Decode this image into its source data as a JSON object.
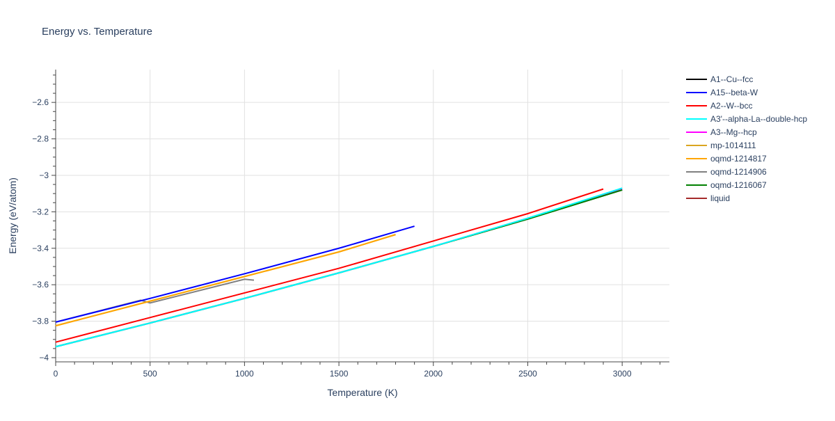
{
  "chart_data": {
    "type": "line",
    "title": "Energy vs. Temperature",
    "xlabel": "Temperature (K)",
    "ylabel": "Energy (eV/atom)",
    "xlim": [
      0,
      3250
    ],
    "ylim": [
      -4.023,
      -2.42
    ],
    "xticks": [
      0,
      500,
      1000,
      1500,
      2000,
      2500,
      3000
    ],
    "yticks": [
      -4,
      -3.8,
      -3.6,
      -3.4,
      -3.2,
      -3,
      -2.8,
      -2.6
    ],
    "ytick_labels": [
      "−4",
      "−3.8",
      "−3.6",
      "−3.4",
      "−3.2",
      "−3",
      "−2.8",
      "−2.6"
    ],
    "grid": true,
    "legend_position": "right",
    "series": [
      {
        "name": "A1--Cu--fcc",
        "color": "#000000",
        "x": [
          0,
          500,
          1000,
          1500,
          2000,
          2500,
          3000
        ],
        "y": [
          -3.94,
          -3.81,
          -3.675,
          -3.535,
          -3.39,
          -3.24,
          -3.08
        ]
      },
      {
        "name": "A15--beta-W",
        "color": "#0000ff",
        "x": [
          0,
          500,
          1000,
          1500,
          1900
        ],
        "y": [
          -3.805,
          -3.675,
          -3.54,
          -3.4,
          -3.279
        ]
      },
      {
        "name": "A2--W--bcc",
        "color": "#ff0000",
        "x": [
          0,
          500,
          1000,
          1500,
          2000,
          2500,
          2900
        ],
        "y": [
          -3.915,
          -3.78,
          -3.645,
          -3.51,
          -3.36,
          -3.21,
          -3.075
        ]
      },
      {
        "name": "A3'--alpha-La--double-hcp",
        "color": "#00ffff",
        "x": [
          0,
          500,
          1000,
          1500,
          2000,
          2500,
          3000
        ],
        "y": [
          -3.94,
          -3.81,
          -3.675,
          -3.535,
          -3.39,
          -3.235,
          -3.07
        ]
      },
      {
        "name": "A3--Mg--hcp",
        "color": "#ff00ff",
        "x": [
          0,
          500,
          1000,
          1500,
          2000,
          2500,
          3000
        ],
        "y": [
          -3.94,
          -3.81,
          -3.675,
          -3.535,
          -3.39,
          -3.235,
          -3.075
        ]
      },
      {
        "name": "mp-1014111",
        "color": "#daa520",
        "x": [
          0,
          500,
          1000,
          1500,
          1800
        ],
        "y": [
          -3.825,
          -3.69,
          -3.555,
          -3.42,
          -3.325
        ]
      },
      {
        "name": "oqmd-1214817",
        "color": "#ffa500",
        "x": [
          0,
          500,
          1000,
          1500,
          1800
        ],
        "y": [
          -3.825,
          -3.69,
          -3.555,
          -3.42,
          -3.325
        ]
      },
      {
        "name": "oqmd-1214906",
        "color": "#808080",
        "x": [
          0,
          450,
          500,
          1000,
          1050
        ],
        "y": [
          -3.805,
          -3.685,
          -3.7,
          -3.57,
          -3.575
        ]
      },
      {
        "name": "oqmd-1216067",
        "color": "#008000",
        "x": [
          0,
          500,
          1000,
          1500,
          2000,
          2500,
          3000
        ],
        "y": [
          -3.94,
          -3.81,
          -3.675,
          -3.535,
          -3.39,
          -3.24,
          -3.08
        ]
      },
      {
        "name": "liquid",
        "color": "#a52a2a",
        "x": [],
        "y": []
      }
    ]
  }
}
